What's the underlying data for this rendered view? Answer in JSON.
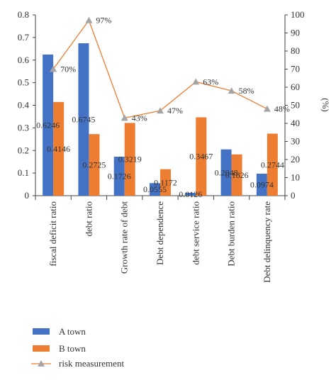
{
  "chart_data": {
    "type": "bar",
    "categories": [
      "fiscal deficit ratio",
      "debt ratio",
      "Growth rate of debt",
      "Debt dependence",
      "debt service ratio",
      "Debt burden ratio",
      "Debt delinquency rate"
    ],
    "series": [
      {
        "name": "A town",
        "type": "bar",
        "axis": "left",
        "color": "#4472C4",
        "values": [
          0.6246,
          0.6745,
          0.1726,
          0.0555,
          0.0126,
          0.2048,
          0.0974
        ],
        "labels": [
          "0.6246",
          "0.6745",
          "0.1726",
          "0.0555",
          "0.0126",
          "0.2048",
          "0.0974"
        ]
      },
      {
        "name": "B town",
        "type": "bar",
        "axis": "left",
        "color": "#ED7D31",
        "values": [
          0.4146,
          0.2725,
          0.3219,
          0.1172,
          0.3467,
          0.1826,
          0.2744
        ],
        "labels": [
          "0.4146",
          "0.2725",
          "0.3219",
          "0.1172",
          "0.3467",
          "0.1826",
          "0.2744"
        ]
      },
      {
        "name": "risk measurement",
        "type": "line",
        "axis": "right",
        "color": "#ED7D31",
        "marker_color": "#A5A5A5",
        "values": [
          70,
          97,
          43,
          47,
          63,
          58,
          48
        ],
        "labels": [
          "70%",
          "97%",
          "43%",
          "47%",
          "63%",
          "58%",
          "48%"
        ]
      }
    ],
    "y_left": {
      "min": 0,
      "max": 0.8,
      "ticks": [
        "0",
        "0.1",
        "0.2",
        "0.3",
        "0.4",
        "0.5",
        "0.6",
        "0.7",
        "0.8"
      ]
    },
    "y_right": {
      "min": 0,
      "max": 100,
      "label": "(%)",
      "ticks": [
        "0",
        "10",
        "20",
        "30",
        "40",
        "50",
        "60",
        "70",
        "80",
        "90",
        "100"
      ]
    },
    "grid": false,
    "legend": "bottom-left"
  }
}
